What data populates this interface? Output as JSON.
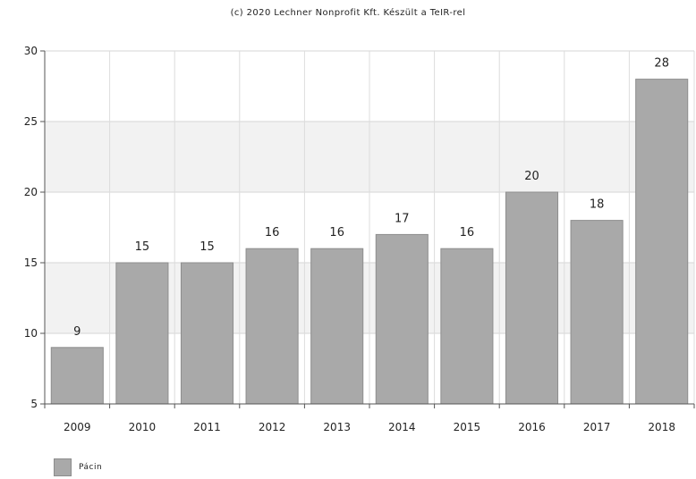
{
  "header": {
    "credit": "(c) 2020 Lechner Nonprofit Kft. Készült a TeIR-rel"
  },
  "chart_data": {
    "type": "bar",
    "categories": [
      "2009",
      "2010",
      "2011",
      "2012",
      "2013",
      "2014",
      "2015",
      "2016",
      "2017",
      "2018"
    ],
    "series": [
      {
        "name": "Pácin",
        "values": [
          9,
          15,
          15,
          16,
          16,
          17,
          16,
          20,
          18,
          28
        ],
        "color": "#a9a9a9"
      }
    ],
    "ylim": [
      5,
      30
    ],
    "yticks": [
      "5",
      "10",
      "15",
      "20",
      "25",
      "30"
    ],
    "grid": true,
    "band_fill": "#f2f2f2",
    "legend_position": "bottom-left"
  }
}
